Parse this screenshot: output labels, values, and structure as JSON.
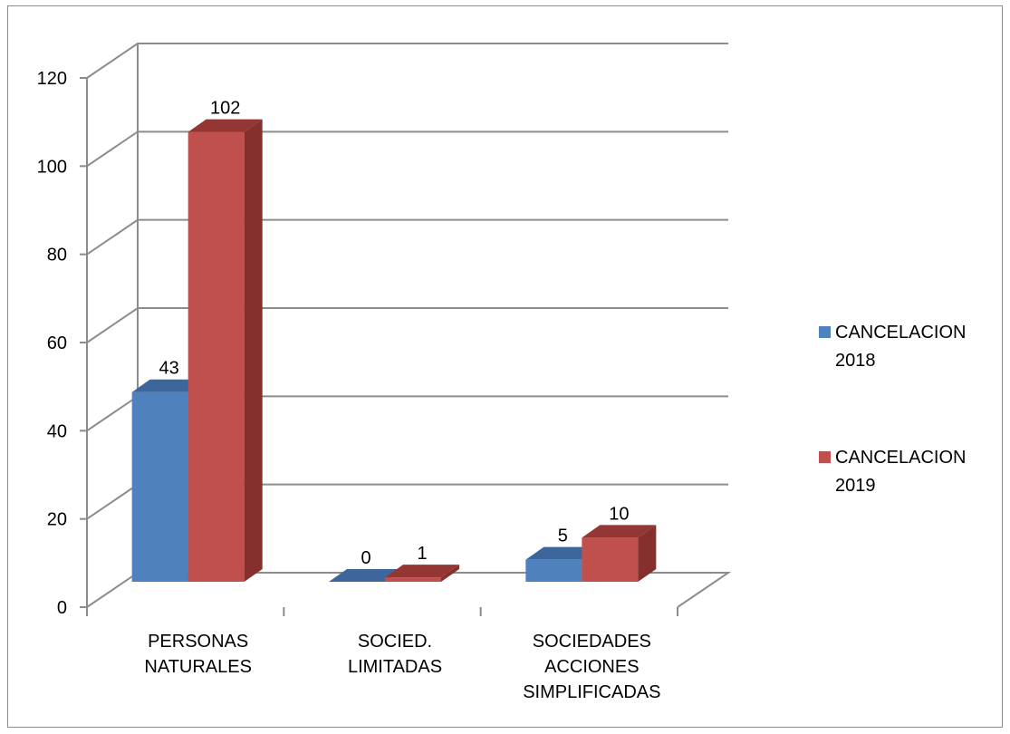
{
  "chart_data": {
    "type": "bar",
    "three_d": true,
    "title": "",
    "xlabel": "",
    "ylabel": "",
    "categories": [
      [
        "PERSONAS",
        "NATURALES"
      ],
      [
        "SOCIED.",
        "LIMITADAS"
      ],
      [
        "SOCIEDADES",
        "ACCIONES",
        "SIMPLIFICADAS"
      ]
    ],
    "series": [
      {
        "name": [
          "CANCELACION",
          "2018"
        ],
        "color": "#4f81bd",
        "side": "#3a6596",
        "top": "#3d679c",
        "values": [
          43,
          0,
          5
        ]
      },
      {
        "name": [
          "CANCELACION",
          "2019"
        ],
        "color": "#c0504d",
        "side": "#85302d",
        "top": "#943634",
        "values": [
          102,
          1,
          10
        ]
      }
    ],
    "ylim": [
      0,
      120
    ],
    "yticks": [
      0,
      20,
      40,
      60,
      80,
      100,
      120
    ],
    "grid": true,
    "legend_position": "right"
  }
}
